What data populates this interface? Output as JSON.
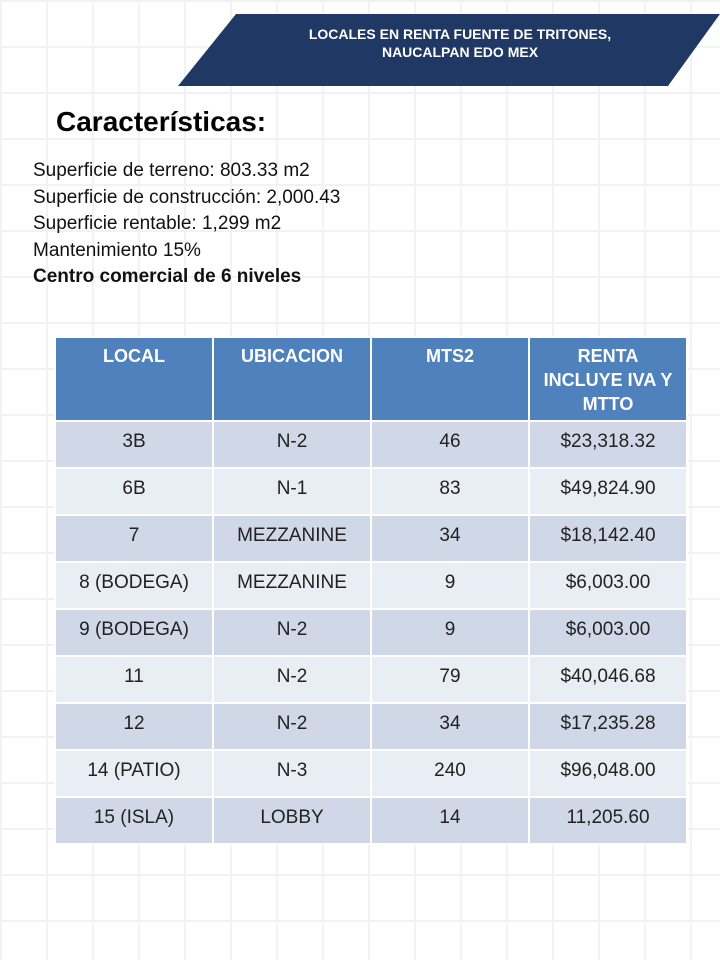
{
  "header": {
    "title_lines": [
      "LOCALES EN RENTA FUENTE DE TRITONES,",
      "NAUCALPAN EDO MEX"
    ]
  },
  "heading": "Características:",
  "features": [
    "Superficie de terreno: 803.33 m2",
    "Superficie de construcción: 2,000.43",
    "Superficie rentable: 1,299 m2",
    "Mantenimiento 15%",
    "Centro comercial de 6 niveles"
  ],
  "table": {
    "columns": [
      "LOCAL",
      "UBICACION",
      "MTS2",
      "RENTA INCLUYE IVA Y MTTO"
    ],
    "rows": [
      [
        "3B",
        "N-2",
        "46",
        "$23,318.32"
      ],
      [
        "6B",
        "N-1",
        "83",
        "$49,824.90"
      ],
      [
        "7",
        "MEZZANINE",
        "34",
        "$18,142.40"
      ],
      [
        "8 (BODEGA)",
        "MEZZANINE",
        "9",
        "$6,003.00"
      ],
      [
        "9 (BODEGA)",
        "N-2",
        "9",
        "$6,003.00"
      ],
      [
        "11",
        "N-2",
        "79",
        "$40,046.68"
      ],
      [
        "12",
        "N-2",
        "34",
        "$17,235.28"
      ],
      [
        "14 (PATIO)",
        "N-3",
        "240",
        "$96,048.00"
      ],
      [
        "15 (ISLA)",
        "LOBBY",
        "14",
        "11,205.60"
      ]
    ]
  }
}
